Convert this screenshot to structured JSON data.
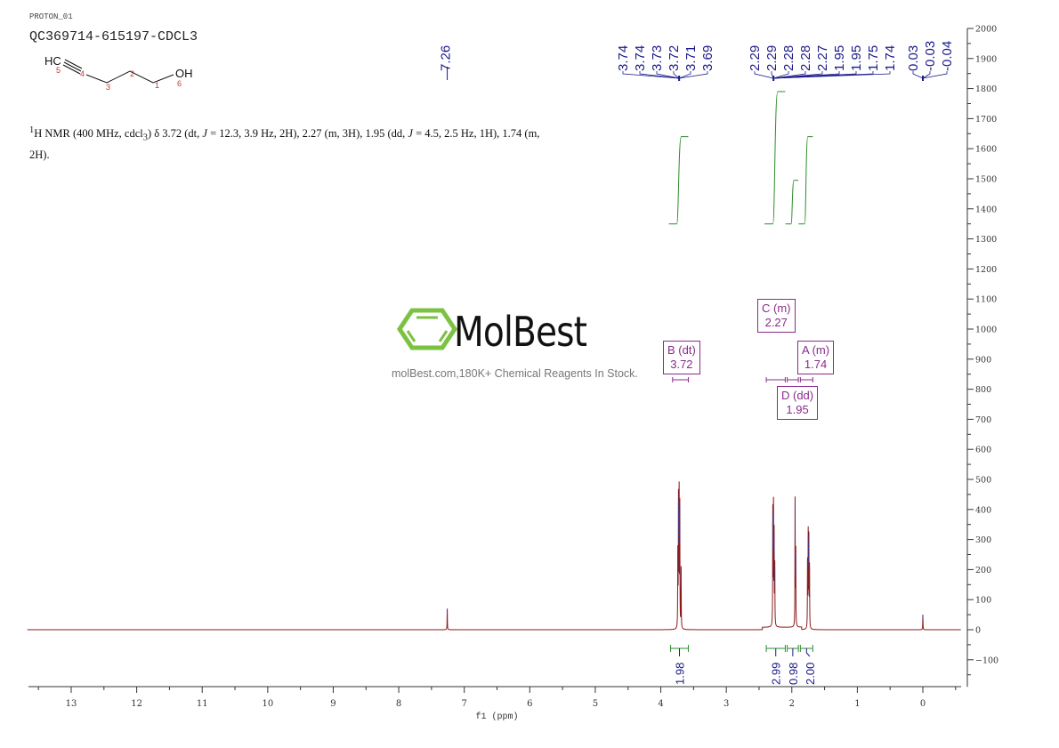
{
  "header": {
    "title": "QC369714-615197-CDCL3",
    "experiment": "PROTON_01"
  },
  "description": {
    "text_html": "<sup>1</sup>H NMR (400 MHz, cdcl<sub>3</sub>) δ 3.72 (dt, <i>J</i> = 12.3, 3.9 Hz, 2H), 2.27 (m, 3H), 1.95 (dd, <i>J</i> = 4.5, 2.5 Hz, 1H), 1.74 (m, 2H)."
  },
  "structure": {
    "atoms": [
      "HC",
      "OH"
    ],
    "atom_numbers": [
      "1",
      "2",
      "3",
      "4",
      "5",
      "6"
    ]
  },
  "watermark": {
    "brand": "MolBest",
    "tagline": "molBest.com,180K+ Chemical Reagents In Stock.",
    "brand_color": "#7cc242"
  },
  "colors": {
    "spectrum": "#8b1a1a",
    "peak_labels": "#1a1a8b",
    "integrals": "#2e8b2e",
    "multiplets": "#8b2a8b",
    "axis": "#333333"
  },
  "chart_data": {
    "type": "line",
    "xlabel": "f1 (ppm)",
    "xlim": [
      13.67,
      -0.58
    ],
    "ylim": [
      -190,
      2000
    ],
    "x_ticks": [
      13,
      12,
      11,
      10,
      9,
      8,
      7,
      6,
      5,
      4,
      3,
      2,
      1,
      0
    ],
    "y_ticks": [
      2000,
      1900,
      1800,
      1700,
      1600,
      1500,
      1400,
      1300,
      1200,
      1100,
      1000,
      900,
      800,
      700,
      600,
      500,
      400,
      300,
      200,
      100,
      0,
      -100
    ],
    "peaks": [
      {
        "ppm": 7.26,
        "height": 70
      },
      {
        "ppm": 3.74,
        "height": 250
      },
      {
        "ppm": 3.73,
        "height": 420
      },
      {
        "ppm": 3.72,
        "height": 450
      },
      {
        "ppm": 3.71,
        "height": 400
      },
      {
        "ppm": 3.69,
        "height": 200
      },
      {
        "ppm": 2.29,
        "height": 380
      },
      {
        "ppm": 2.28,
        "height": 400
      },
      {
        "ppm": 2.27,
        "height": 300
      },
      {
        "ppm": 2.26,
        "height": 200
      },
      {
        "ppm": 1.95,
        "height": 420
      },
      {
        "ppm": 1.94,
        "height": 250
      },
      {
        "ppm": 1.76,
        "height": 220
      },
      {
        "ppm": 1.75,
        "height": 310
      },
      {
        "ppm": 1.74,
        "height": 300
      },
      {
        "ppm": 1.73,
        "height": 200
      },
      {
        "ppm": 0.0,
        "height": 50
      }
    ],
    "peak_label_groups": [
      {
        "labels": [
          "3.74",
          "3.74",
          "3.73",
          "3.72",
          "3.71",
          "3.69"
        ],
        "ppm": 3.72
      },
      {
        "labels": [
          "2.29",
          "2.29",
          "2.28",
          "2.28",
          "2.27",
          "1.95",
          "1.95",
          "1.75",
          "1.74"
        ],
        "ppm": 2.28
      },
      {
        "labels": [
          "0.03",
          "-0.03",
          "-0.04"
        ],
        "ppm": 0.0
      }
    ],
    "single_peak_label": {
      "label": "7.26",
      "ppm": 7.26
    },
    "integrals": [
      {
        "from": 3.85,
        "to": 3.58,
        "value": "1.98",
        "curve_start": 1350,
        "curve_end": 1640
      },
      {
        "from": 2.39,
        "to": 2.1,
        "value": "2.99",
        "curve_start": 1350,
        "curve_end": 1790
      },
      {
        "from": 2.07,
        "to": 1.9,
        "value": "0.98",
        "curve_start": 1350,
        "curve_end": 1495
      },
      {
        "from": 1.87,
        "to": 1.68,
        "value": "2.00",
        "curve_start": 1350,
        "curve_end": 1640
      }
    ],
    "multiplets": [
      {
        "id": "B",
        "type": "dt",
        "shift": "3.72",
        "from": 3.82,
        "to": 3.58
      },
      {
        "id": "C",
        "type": "m",
        "shift": "2.27",
        "from": 2.39,
        "to": 2.1
      },
      {
        "id": "A",
        "type": "m",
        "shift": "1.74",
        "from": 1.87,
        "to": 1.68
      },
      {
        "id": "D",
        "type": "dd",
        "shift": "1.95",
        "from": 2.07,
        "to": 1.9
      }
    ]
  }
}
